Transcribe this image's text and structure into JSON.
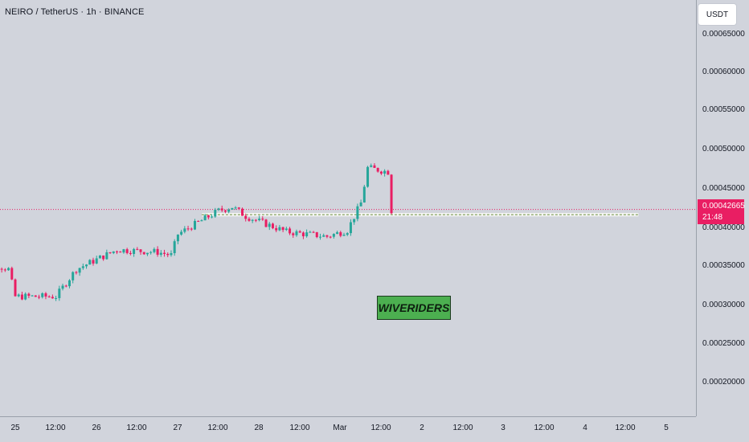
{
  "header": {
    "symbol": "NEIRO / TetherUS · 1h · BINANCE"
  },
  "price_scale": {
    "currency": "USDT",
    "ticks": [
      "0.00065000",
      "0.00060000",
      "0.00055000",
      "0.00050000",
      "0.00045000",
      "0.00040000",
      "0.00035000",
      "0.00030000",
      "0.00025000",
      "0.00020000"
    ],
    "last_price": "0.00042665",
    "countdown": "21:48"
  },
  "time_axis": {
    "labels": [
      "25",
      "12:00",
      "26",
      "12:00",
      "27",
      "12:00",
      "28",
      "12:00",
      "Mar",
      "12:00",
      "2",
      "12:00",
      "3",
      "12:00",
      "4",
      "12:00",
      "5"
    ]
  },
  "watermark": "WIVERIDERS",
  "colors": {
    "background": "#d1d4dc",
    "up": "#26a69a",
    "down": "#e91e63",
    "level_line": "#f5f5f5",
    "level_dash": "#6b8f3a",
    "last_price_line": "#e91e63",
    "badge": "#4caf50"
  },
  "chart_data": {
    "type": "candlestick",
    "title": "NEIRO / TetherUS · 1h · BINANCE",
    "interval": "1h",
    "ylim": [
      0.00015,
      0.00068
    ],
    "last_price": 0.00042665,
    "horizontal_level": 0.00042,
    "path_points": [
      {
        "t": "2024-02-24T12:00",
        "p": 0.000365
      },
      {
        "t": "2024-02-24T22:00",
        "p": 0.00035
      },
      {
        "t": "2024-02-25T00:00",
        "p": 0.000315
      },
      {
        "t": "2024-02-25T12:00",
        "p": 0.000315
      },
      {
        "t": "2024-02-25T18:00",
        "p": 0.00035
      },
      {
        "t": "2024-02-26T06:00",
        "p": 0.000375
      },
      {
        "t": "2024-02-26T18:00",
        "p": 0.000372
      },
      {
        "t": "2024-02-26T22:00",
        "p": 0.000368
      },
      {
        "t": "2024-02-27T00:00",
        "p": 0.000395
      },
      {
        "t": "2024-02-27T12:00",
        "p": 0.000425
      },
      {
        "t": "2024-02-27T16:00",
        "p": 0.00043
      },
      {
        "t": "2024-02-27T20:00",
        "p": 0.000418
      },
      {
        "t": "2024-02-28T08:00",
        "p": 0.000398
      },
      {
        "t": "2024-02-28T20:00",
        "p": 0.000392
      },
      {
        "t": "2024-02-29T02:00",
        "p": 0.0004
      },
      {
        "t": "2024-02-29T06:00",
        "p": 0.000435
      },
      {
        "t": "2024-02-29T08:00",
        "p": 0.00048
      },
      {
        "t": "2024-02-29T14:00",
        "p": 0.000475
      },
      {
        "t": "2024-02-29T15:00",
        "p": 0.000425
      }
    ]
  }
}
